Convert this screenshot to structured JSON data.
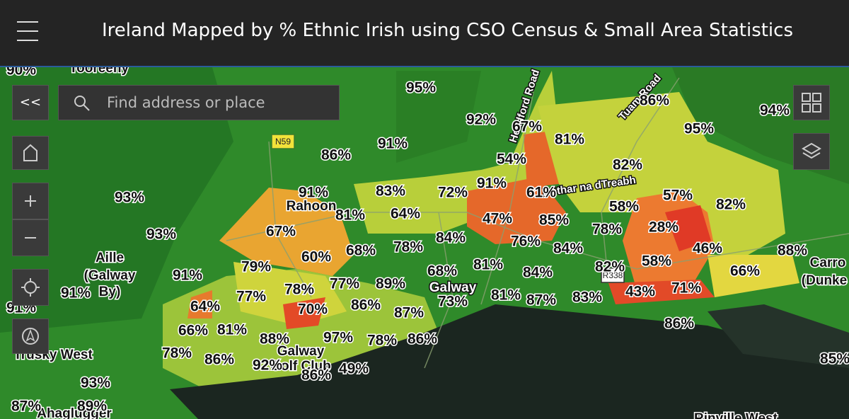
{
  "header": {
    "title": "Ireland Mapped by % Ethnic Irish using CSO Census & Small Area Statistics"
  },
  "search": {
    "placeholder": "Find address or place"
  },
  "controls": {
    "collapse": "<<"
  },
  "road_shields": [
    "N59",
    "R338"
  ],
  "roads": [
    "Headford Road",
    "Tuam Road",
    "Bóthar na dTreabh"
  ],
  "places": [
    "Tooreeny",
    "Rahoon",
    "Aille",
    "(Galway",
    "By)",
    "Galway",
    "Galway",
    "Golf Club",
    "Trusky West",
    "Ahaglugger",
    "Carro",
    "(Dunke",
    "Rinville West"
  ],
  "percent_labels": [
    "90%",
    "95%",
    "92%",
    "67%",
    "81%",
    "86%",
    "94%",
    "95%",
    "91%",
    "86%",
    "54%",
    "82%",
    "93%",
    "91%",
    "83%",
    "72%",
    "91%",
    "61%",
    "57%",
    "82%",
    "58%",
    "81%",
    "64%",
    "47%",
    "85%",
    "78%",
    "28%",
    "67%",
    "93%",
    "84%",
    "76%",
    "84%",
    "46%",
    "88%",
    "68%",
    "78%",
    "60%",
    "79%",
    "81%",
    "82%",
    "58%",
    "66%",
    "91%",
    "68%",
    "84%",
    "77%",
    "89%",
    "78%",
    "77%",
    "81%",
    "71%",
    "43%",
    "91%",
    "73%",
    "87%",
    "83%",
    "64%",
    "70%",
    "86%",
    "87%",
    "91%",
    "86%",
    "66%",
    "81%",
    "88%",
    "97%",
    "78%",
    "86%",
    "78%",
    "86%",
    "92%",
    "49%",
    "86%",
    "93%",
    "87%",
    "89%",
    "85%"
  ]
}
